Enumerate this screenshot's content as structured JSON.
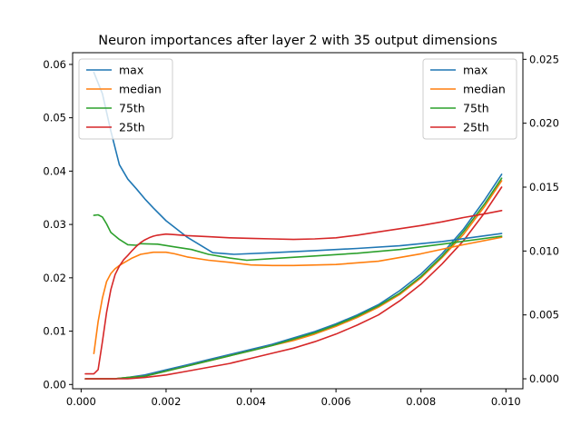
{
  "chart_data": {
    "type": "line",
    "title": "Neuron importances after layer 2 with 35 output dimensions",
    "xlabel": "",
    "ylabel_left": "",
    "ylabel_right": "",
    "xlim": [
      -0.0002,
      0.0104
    ],
    "ylim_left": [
      -0.0008,
      0.0622
    ],
    "ylim_right": [
      -0.00078,
      0.02552
    ],
    "x_ticks": [
      0.0,
      0.002,
      0.004,
      0.006,
      0.008,
      0.01
    ],
    "x_tick_labels": [
      "0.000",
      "0.002",
      "0.004",
      "0.006",
      "0.008",
      "0.010"
    ],
    "y_left_ticks": [
      0.0,
      0.01,
      0.02,
      0.03,
      0.04,
      0.05,
      0.06
    ],
    "y_left_tick_labels": [
      "0.00",
      "0.01",
      "0.02",
      "0.03",
      "0.04",
      "0.05",
      "0.06"
    ],
    "y_right_ticks": [
      0.0,
      0.005,
      0.01,
      0.015,
      0.02,
      0.025
    ],
    "y_right_tick_labels": [
      "0.000",
      "0.005",
      "0.010",
      "0.015",
      "0.020",
      "0.025"
    ],
    "grid": false,
    "legends": [
      {
        "placement": "top-left",
        "axis": "left",
        "entries": [
          "max",
          "median",
          "75th",
          "25th"
        ]
      },
      {
        "placement": "top-right",
        "axis": "right",
        "entries": [
          "max",
          "median",
          "75th",
          "25th"
        ]
      }
    ],
    "colors": {
      "max": "#1f77b4",
      "median": "#ff7f0e",
      "75th": "#2ca02c",
      "25th": "#d62728"
    },
    "left_series": [
      {
        "name": "max",
        "x": [
          0.0003,
          0.0005,
          0.0007,
          0.0009,
          0.0011,
          0.0013,
          0.0015,
          0.0017,
          0.002,
          0.0025,
          0.0031,
          0.0036,
          0.0045,
          0.0055,
          0.0065,
          0.0075,
          0.0085,
          0.0099
        ],
        "y": [
          0.0585,
          0.0545,
          0.0475,
          0.0412,
          0.0385,
          0.0367,
          0.0348,
          0.0331,
          0.0307,
          0.0276,
          0.0247,
          0.0244,
          0.0247,
          0.0251,
          0.0255,
          0.026,
          0.0268,
          0.0283
        ]
      },
      {
        "name": "median",
        "x": [
          0.0003,
          0.0004,
          0.0005,
          0.0006,
          0.0007,
          0.0008,
          0.0009,
          0.001,
          0.0012,
          0.0014,
          0.0017,
          0.002,
          0.0022,
          0.0025,
          0.003,
          0.0035,
          0.004,
          0.0045,
          0.005,
          0.006,
          0.007,
          0.008,
          0.009,
          0.0099
        ],
        "y": [
          0.0058,
          0.0118,
          0.0162,
          0.0193,
          0.0208,
          0.0217,
          0.0223,
          0.0228,
          0.0237,
          0.0244,
          0.0248,
          0.0248,
          0.0245,
          0.0239,
          0.0233,
          0.0229,
          0.0224,
          0.0223,
          0.0223,
          0.0225,
          0.0231,
          0.0245,
          0.0262,
          0.0276
        ]
      },
      {
        "name": "75th",
        "x": [
          0.0003,
          0.0004,
          0.0005,
          0.0006,
          0.0007,
          0.0009,
          0.0011,
          0.0013,
          0.0014,
          0.0018,
          0.0022,
          0.0026,
          0.003,
          0.0035,
          0.0039,
          0.0045,
          0.0055,
          0.0065,
          0.0075,
          0.0085,
          0.0099
        ],
        "y": [
          0.0317,
          0.0318,
          0.0314,
          0.0301,
          0.0285,
          0.0272,
          0.0262,
          0.0261,
          0.0264,
          0.0263,
          0.0258,
          0.0253,
          0.0244,
          0.0237,
          0.0233,
          0.0236,
          0.0241,
          0.0246,
          0.0253,
          0.0263,
          0.0278
        ]
      },
      {
        "name": "25th",
        "x": [
          0.0001,
          0.0002,
          0.0003,
          0.0004,
          0.0005,
          0.0006,
          0.0007,
          0.0008,
          0.0009,
          0.001,
          0.0011,
          0.0012,
          0.0013,
          0.0014,
          0.0015,
          0.0016,
          0.0017,
          0.0018,
          0.002,
          0.0022,
          0.0025,
          0.003,
          0.0035,
          0.004,
          0.0045,
          0.005,
          0.0055,
          0.006,
          0.0065,
          0.007,
          0.0075,
          0.008,
          0.0085,
          0.009,
          0.0095,
          0.0099
        ],
        "y": [
          0.002,
          0.002,
          0.002,
          0.0028,
          0.008,
          0.0135,
          0.0178,
          0.0206,
          0.0222,
          0.0234,
          0.0242,
          0.0251,
          0.0259,
          0.0266,
          0.0271,
          0.0275,
          0.0278,
          0.028,
          0.0282,
          0.0281,
          0.0279,
          0.0277,
          0.0275,
          0.0274,
          0.0273,
          0.0272,
          0.0273,
          0.0275,
          0.028,
          0.0286,
          0.0292,
          0.0298,
          0.0305,
          0.0313,
          0.032,
          0.0326
        ]
      }
    ],
    "right_series": [
      {
        "name": "max",
        "x": [
          0.0001,
          0.0004,
          0.0008,
          0.0011,
          0.0015,
          0.002,
          0.0025,
          0.003,
          0.0035,
          0.004,
          0.0045,
          0.005,
          0.0055,
          0.006,
          0.0065,
          0.007,
          0.0075,
          0.008,
          0.0085,
          0.009,
          0.0095,
          0.0099
        ],
        "y": [
          0.0,
          0.0,
          0.0,
          0.0001,
          0.0003,
          0.0007,
          0.0011,
          0.0015,
          0.0019,
          0.0023,
          0.0027,
          0.0032,
          0.0037,
          0.0043,
          0.005,
          0.0058,
          0.0069,
          0.0082,
          0.0098,
          0.0117,
          0.014,
          0.016
        ]
      },
      {
        "name": "median",
        "x": [
          0.0001,
          0.0004,
          0.0008,
          0.0011,
          0.0015,
          0.002,
          0.0025,
          0.003,
          0.0035,
          0.004,
          0.0045,
          0.005,
          0.0055,
          0.006,
          0.0065,
          0.007,
          0.0075,
          0.008,
          0.0085,
          0.009,
          0.0095,
          0.0099
        ],
        "y": [
          0.0,
          0.0,
          0.0,
          0.0001,
          0.0002,
          0.0006,
          0.001,
          0.0014,
          0.0018,
          0.0022,
          0.0026,
          0.003,
          0.0035,
          0.0041,
          0.0048,
          0.0056,
          0.0066,
          0.0079,
          0.0095,
          0.0113,
          0.0135,
          0.0155
        ]
      },
      {
        "name": "75th",
        "x": [
          0.0001,
          0.0004,
          0.0008,
          0.0011,
          0.0015,
          0.002,
          0.0025,
          0.003,
          0.0035,
          0.004,
          0.0045,
          0.005,
          0.0055,
          0.006,
          0.0065,
          0.007,
          0.0075,
          0.008,
          0.0085,
          0.009,
          0.0095,
          0.0099
        ],
        "y": [
          0.0,
          0.0,
          0.0,
          0.0001,
          0.0002,
          0.0006,
          0.001,
          0.0014,
          0.0018,
          0.0022,
          0.0026,
          0.0031,
          0.0036,
          0.0042,
          0.0049,
          0.0057,
          0.0067,
          0.008,
          0.0096,
          0.0115,
          0.0137,
          0.0157
        ]
      },
      {
        "name": "25th",
        "x": [
          0.0001,
          0.0004,
          0.0008,
          0.0011,
          0.0015,
          0.002,
          0.0025,
          0.003,
          0.0035,
          0.004,
          0.0045,
          0.005,
          0.0055,
          0.006,
          0.0065,
          0.007,
          0.0075,
          0.008,
          0.0085,
          0.009,
          0.0095,
          0.0099
        ],
        "y": [
          0.0,
          0.0,
          0.0,
          0.0,
          0.0001,
          0.0003,
          0.0006,
          0.0009,
          0.0012,
          0.0016,
          0.002,
          0.0024,
          0.0029,
          0.0035,
          0.0042,
          0.005,
          0.0061,
          0.0074,
          0.009,
          0.0108,
          0.013,
          0.015
        ]
      }
    ]
  }
}
